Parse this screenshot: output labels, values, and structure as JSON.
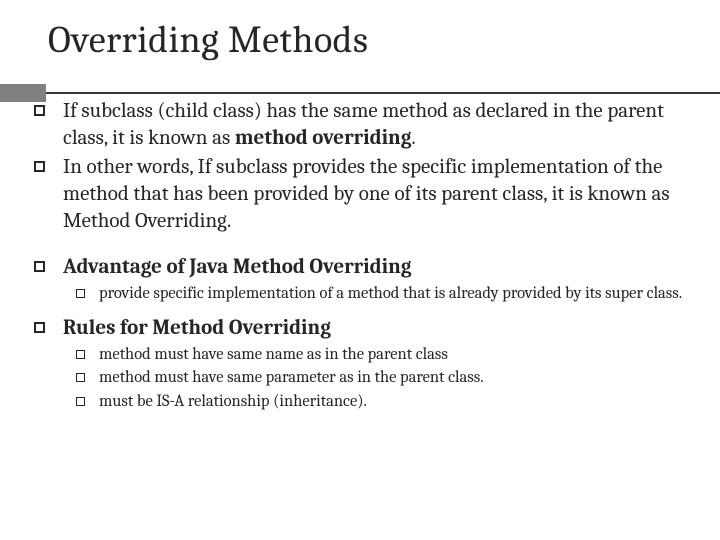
{
  "title": "Overriding Methods",
  "accent": {
    "block_color": "#808080",
    "line_color": "#333333"
  },
  "items": [
    {
      "level": 1,
      "html": "If subclass (child class) has the same method as declared in the parent class, it is known as <span class=\"bold\">method overriding</span>."
    },
    {
      "level": 1,
      "html": "In other words, If subclass provides the specific implementation of the method that has been provided by one of its parent class, it is known as Method Overriding."
    },
    {
      "level": "spacer"
    },
    {
      "level": 1,
      "html": "<span class=\"bold\">Advantage of Java Method Overriding</span>"
    },
    {
      "level": 2,
      "html": "provide specific implementation of a method that is already provided by its super class."
    },
    {
      "level": "spacer-sm"
    },
    {
      "level": 1,
      "html": "<span class=\"bold\">Rules for Method Overriding</span>"
    },
    {
      "level": 2,
      "html": "method must have same name as in the parent class"
    },
    {
      "level": 2,
      "html": "method must have same parameter as in the parent class."
    },
    {
      "level": 2,
      "html": "must be IS-A relationship (inheritance)."
    }
  ]
}
